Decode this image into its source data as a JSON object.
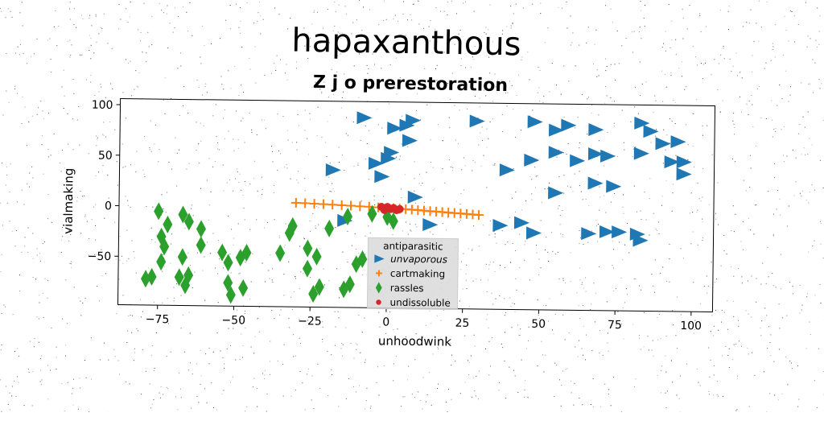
{
  "suptitle": "hapaxanthous",
  "chart_data": {
    "type": "scatter",
    "title": "Z j o prerestoration",
    "xlabel": "unhoodwink",
    "ylabel": "vialmaking",
    "xlim": [
      -88,
      107
    ],
    "ylim": [
      -98,
      106
    ],
    "xticks": [
      -75,
      -50,
      -25,
      0,
      25,
      50,
      75,
      100
    ],
    "yticks": [
      100,
      50,
      0,
      -50
    ],
    "xtick_labels": [
      "−75",
      "−50",
      "−25",
      "0",
      "25",
      "50",
      "75",
      "100"
    ],
    "ytick_labels": [
      "100",
      "50",
      "0",
      "−50"
    ],
    "grid": false,
    "legend": {
      "title": "antiparasitic",
      "placement": "lower-center"
    },
    "series": [
      {
        "name": "unvaporous",
        "marker": "triangle-right",
        "color": "#1f77b4",
        "points": [
          [
            -8,
            90
          ],
          [
            2,
            80
          ],
          [
            6,
            83
          ],
          [
            8,
            88
          ],
          [
            7,
            68
          ],
          [
            0,
            50
          ],
          [
            1,
            56
          ],
          [
            -4,
            45
          ],
          [
            -2,
            32
          ],
          [
            -18,
            38
          ],
          [
            9,
            12
          ],
          [
            -14,
            -12
          ],
          [
            14,
            -15
          ],
          [
            29,
            88
          ],
          [
            48,
            88
          ],
          [
            55,
            80
          ],
          [
            59,
            85
          ],
          [
            68,
            81
          ],
          [
            55,
            58
          ],
          [
            62,
            50
          ],
          [
            68,
            57
          ],
          [
            72,
            55
          ],
          [
            83,
            58
          ],
          [
            83,
            88
          ],
          [
            86,
            80
          ],
          [
            90,
            68
          ],
          [
            95,
            70
          ],
          [
            93,
            50
          ],
          [
            97,
            50
          ],
          [
            97,
            38
          ],
          [
            47,
            50
          ],
          [
            39,
            40
          ],
          [
            55,
            18
          ],
          [
            68,
            28
          ],
          [
            74,
            25
          ],
          [
            37,
            -15
          ],
          [
            44,
            -12
          ],
          [
            48,
            -22
          ],
          [
            66,
            -22
          ],
          [
            72,
            -20
          ],
          [
            82,
            -22
          ],
          [
            83,
            -28
          ],
          [
            76,
            -20
          ]
        ]
      },
      {
        "name": "cartmaking",
        "marker": "plus",
        "color": "#ff7f0e",
        "points": [
          [
            -30,
            5
          ],
          [
            -27,
            4.8
          ],
          [
            -24,
            4.3
          ],
          [
            -21,
            4
          ],
          [
            -18,
            3.6
          ],
          [
            -15,
            3.2
          ],
          [
            -12,
            2.8
          ],
          [
            -9,
            2.3
          ],
          [
            -6,
            2
          ],
          [
            -3,
            1.5
          ],
          [
            0,
            1.1
          ],
          [
            2,
            0.8
          ],
          [
            4,
            0.4
          ],
          [
            6,
            0
          ],
          [
            8,
            -0.4
          ],
          [
            10,
            -0.8
          ],
          [
            12,
            -1.2
          ],
          [
            14,
            -1.6
          ],
          [
            16,
            -2
          ],
          [
            18,
            -2.4
          ],
          [
            20,
            -2.8
          ],
          [
            22,
            -3.2
          ],
          [
            24,
            -3.6
          ],
          [
            26,
            -4
          ],
          [
            28,
            -4.4
          ],
          [
            30,
            -4.8
          ]
        ]
      },
      {
        "name": "rassles",
        "marker": "diamond",
        "color": "#2ca02c",
        "points": [
          [
            -75,
            -5
          ],
          [
            -72,
            -18
          ],
          [
            -65,
            -15
          ],
          [
            -61,
            -22
          ],
          [
            -67,
            -8
          ],
          [
            -74,
            -30
          ],
          [
            -73,
            -40
          ],
          [
            -74,
            -55
          ],
          [
            -67,
            -50
          ],
          [
            -61,
            -38
          ],
          [
            -54,
            -45
          ],
          [
            -52,
            -55
          ],
          [
            -46,
            -45
          ],
          [
            -48,
            -50
          ],
          [
            -52,
            -75
          ],
          [
            -51,
            -87
          ],
          [
            -47,
            -80
          ],
          [
            -79,
            -72
          ],
          [
            -77,
            -70
          ],
          [
            -68,
            -70
          ],
          [
            -65,
            -68
          ],
          [
            -66,
            -78
          ],
          [
            -35,
            -45
          ],
          [
            -32,
            -25
          ],
          [
            -31,
            -18
          ],
          [
            -26,
            -40
          ],
          [
            -26,
            -60
          ],
          [
            -23,
            -48
          ],
          [
            -19,
            -20
          ],
          [
            -13,
            -8
          ],
          [
            -5,
            -5
          ],
          [
            -10,
            -55
          ],
          [
            -8,
            -50
          ],
          [
            -12,
            -75
          ],
          [
            -14,
            -80
          ],
          [
            -22,
            -78
          ],
          [
            -24,
            -85
          ],
          [
            0,
            -8
          ],
          [
            2,
            -12
          ]
        ]
      },
      {
        "name": "undissoluble",
        "marker": "circle",
        "color": "#d62728",
        "points": [
          [
            -2,
            2
          ],
          [
            0,
            1
          ],
          [
            1,
            0
          ],
          [
            3,
            -1
          ],
          [
            -1,
            -1
          ],
          [
            2,
            1
          ],
          [
            4,
            0
          ],
          [
            0,
            2
          ]
        ]
      }
    ]
  }
}
